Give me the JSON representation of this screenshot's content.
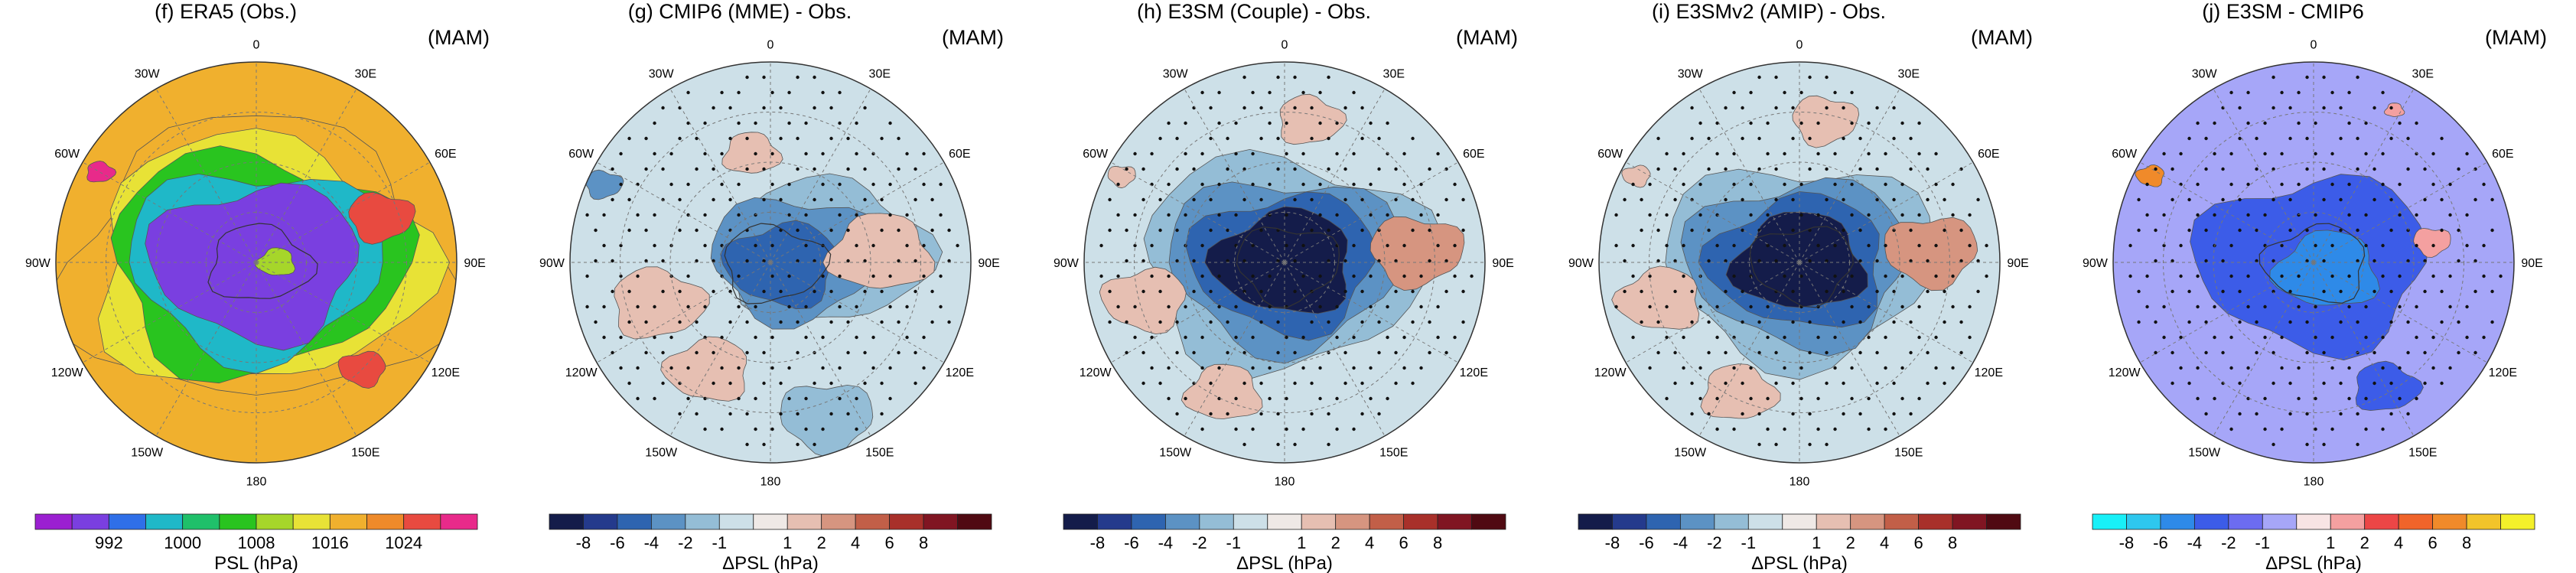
{
  "figure": {
    "season": "(MAM)"
  },
  "longitude_labels": [
    "0",
    "30E",
    "60E",
    "90E",
    "120E",
    "150E",
    "180",
    "150W",
    "120W",
    "90W",
    "60W",
    "30W"
  ],
  "chart_data": [
    {
      "id": "f",
      "type": "polar-contour",
      "title": "(f) ERA5 (Obs.)",
      "season": "(MAM)",
      "variable": "PSL",
      "units": "hPa",
      "colorbar_label": "PSL (hPa)",
      "levels": [
        988,
        992,
        996,
        1000,
        1004,
        1008,
        1012,
        1016,
        1020,
        1024,
        1028
      ],
      "tick_labels": [
        "992",
        "1000",
        "1008",
        "1016",
        "1024"
      ],
      "colors": [
        "#9b1fd1",
        "#7a3fe0",
        "#2f6fe8",
        "#1fb8c8",
        "#1fc06a",
        "#29c41f",
        "#a6d62a",
        "#e8e236",
        "#f0b02e",
        "#ee8a2a",
        "#e84a40",
        "#e82a8a"
      ],
      "stippling": false,
      "features": [
        {
          "kind": "ring",
          "r": 0.82,
          "value": 1016
        },
        {
          "kind": "ring",
          "r": 0.72,
          "value": 1012
        },
        {
          "kind": "ring",
          "r": 0.64,
          "value": 1004
        },
        {
          "kind": "ring",
          "r": 0.55,
          "value": 996
        },
        {
          "kind": "ring",
          "r": 0.45,
          "value": 988
        },
        {
          "kind": "blob",
          "lon": 90,
          "r": 0.1,
          "size": 0.08,
          "value": 1008
        },
        {
          "kind": "blob",
          "lon": 70,
          "r": 0.66,
          "size": 0.14,
          "value": 1024
        },
        {
          "kind": "blob",
          "lon": 135,
          "r": 0.75,
          "size": 0.1,
          "value": 1024
        },
        {
          "kind": "blob",
          "lon": -60,
          "r": 0.9,
          "size": 0.06,
          "value": 1028
        }
      ]
    },
    {
      "id": "g",
      "type": "polar-contour",
      "title": "(g) CMIP6 (MME) - Obs.",
      "season": "(MAM)",
      "variable": "ΔPSL",
      "units": "hPa",
      "colorbar_label": "ΔPSL (hPa)",
      "levels": [
        -8,
        -6,
        -4,
        -2,
        -1,
        1,
        2,
        4,
        6,
        8
      ],
      "tick_labels": [
        "-8",
        "-6",
        "-4",
        "-2",
        "-1",
        "1",
        "2",
        "4",
        "6",
        "8"
      ],
      "colors": [
        "#141c4a",
        "#243a8c",
        "#2e64b0",
        "#5c92c4",
        "#94bdd6",
        "#cde0e8",
        "#efe9e6",
        "#e6bfb2",
        "#d69580",
        "#c25f48",
        "#a8302a",
        "#801522",
        "#500a12"
      ],
      "stippling": true,
      "features": [
        {
          "kind": "blob",
          "lon": 100,
          "r": 0.06,
          "size": 0.24,
          "value": -6
        },
        {
          "kind": "blob",
          "lon": 80,
          "r": 0.12,
          "size": 0.36,
          "value": -3
        },
        {
          "kind": "blob",
          "lon": 80,
          "r": 0.3,
          "size": 0.42,
          "value": -1.5
        },
        {
          "kind": "blob",
          "lon": -10,
          "r": 0.55,
          "size": 0.12,
          "value": 2
        },
        {
          "kind": "blob",
          "lon": 85,
          "r": 0.55,
          "size": 0.22,
          "value": 2.5
        },
        {
          "kind": "blob",
          "lon": -110,
          "r": 0.6,
          "size": 0.2,
          "value": 2
        },
        {
          "kind": "blob",
          "lon": -150,
          "r": 0.62,
          "size": 0.18,
          "value": 2
        },
        {
          "kind": "blob",
          "lon": -65,
          "r": 0.92,
          "size": 0.08,
          "value": -3
        },
        {
          "kind": "blob",
          "lon": 160,
          "r": 0.82,
          "size": 0.2,
          "value": -1.5
        }
      ]
    },
    {
      "id": "h",
      "type": "polar-contour",
      "title": "(h) E3SM (Couple) - Obs.",
      "season": "(MAM)",
      "variable": "ΔPSL",
      "units": "hPa",
      "colorbar_label": "ΔPSL (hPa)",
      "levels": [
        -8,
        -6,
        -4,
        -2,
        -1,
        1,
        2,
        4,
        6,
        8
      ],
      "tick_labels": [
        "-8",
        "-6",
        "-4",
        "-2",
        "-1",
        "1",
        "2",
        "4",
        "6",
        "8"
      ],
      "colors": [
        "#141c4a",
        "#243a8c",
        "#2e64b0",
        "#5c92c4",
        "#94bdd6",
        "#cde0e8",
        "#efe9e6",
        "#e6bfb2",
        "#d69580",
        "#c25f48",
        "#a8302a",
        "#801522",
        "#500a12"
      ],
      "stippling": true,
      "features": [
        {
          "kind": "ring",
          "r": 0.62,
          "value": -2
        },
        {
          "kind": "ring",
          "r": 0.5,
          "value": -4
        },
        {
          "kind": "ring",
          "r": 0.4,
          "value": -6
        },
        {
          "kind": "ring",
          "r": 0.3,
          "value": -9
        },
        {
          "kind": "blob",
          "lon": 10,
          "r": 0.72,
          "size": 0.14,
          "value": 3
        },
        {
          "kind": "blob",
          "lon": 85,
          "r": 0.66,
          "size": 0.2,
          "value": 5
        },
        {
          "kind": "blob",
          "lon": -105,
          "r": 0.72,
          "size": 0.18,
          "value": 3
        },
        {
          "kind": "blob",
          "lon": -155,
          "r": 0.72,
          "size": 0.16,
          "value": 3
        },
        {
          "kind": "blob",
          "lon": -62,
          "r": 0.92,
          "size": 0.06,
          "value": 3
        }
      ]
    },
    {
      "id": "i",
      "type": "polar-contour",
      "title": "(i) E3SMv2 (AMIP) - Obs.",
      "season": "(MAM)",
      "variable": "ΔPSL",
      "units": "hPa",
      "colorbar_label": "ΔPSL (hPa)",
      "levels": [
        -8,
        -6,
        -4,
        -2,
        -1,
        1,
        2,
        4,
        6,
        8
      ],
      "tick_labels": [
        "-8",
        "-6",
        "-4",
        "-2",
        "-1",
        "1",
        "2",
        "4",
        "6",
        "8"
      ],
      "colors": [
        "#141c4a",
        "#243a8c",
        "#2e64b0",
        "#5c92c4",
        "#94bdd6",
        "#cde0e8",
        "#efe9e6",
        "#e6bfb2",
        "#d69580",
        "#c25f48",
        "#a8302a",
        "#801522",
        "#500a12"
      ],
      "stippling": true,
      "features": [
        {
          "kind": "ring",
          "r": 0.58,
          "value": -2
        },
        {
          "kind": "ring",
          "r": 0.48,
          "value": -4
        },
        {
          "kind": "ring",
          "r": 0.38,
          "value": -6
        },
        {
          "kind": "ring",
          "r": 0.28,
          "value": -9
        },
        {
          "kind": "blob",
          "lon": 10,
          "r": 0.72,
          "size": 0.14,
          "value": 3
        },
        {
          "kind": "blob",
          "lon": 85,
          "r": 0.66,
          "size": 0.2,
          "value": 5
        },
        {
          "kind": "blob",
          "lon": -105,
          "r": 0.72,
          "size": 0.18,
          "value": 3
        },
        {
          "kind": "blob",
          "lon": -155,
          "r": 0.72,
          "size": 0.16,
          "value": 3
        },
        {
          "kind": "blob",
          "lon": -62,
          "r": 0.92,
          "size": 0.06,
          "value": 3
        }
      ]
    },
    {
      "id": "j",
      "type": "polar-contour",
      "title": "(j) E3SM - CMIP6",
      "season": "(MAM)",
      "variable": "ΔPSL",
      "units": "hPa",
      "colorbar_label": "ΔPSL (hPa)",
      "levels": [
        -8,
        -6,
        -4,
        -2,
        -1,
        1,
        2,
        4,
        6,
        8
      ],
      "tick_labels": [
        "-8",
        "-6",
        "-4",
        "-2",
        "-1",
        "1",
        "2",
        "4",
        "6",
        "8"
      ],
      "colors": [
        "#18f0f8",
        "#2ec7ee",
        "#2e8ae8",
        "#3c5ce8",
        "#6c6cf0",
        "#a6a6f8",
        "#f8e4e4",
        "#f4a0a0",
        "#ec4646",
        "#f0642a",
        "#f08a2a",
        "#f2c42a",
        "#f4f02a"
      ],
      "stippling": true,
      "features": [
        {
          "kind": "blob",
          "lon": 0,
          "r": 0,
          "size": 0.5,
          "value": -3
        },
        {
          "kind": "blob",
          "lon": 120,
          "r": 0.08,
          "size": 0.22,
          "value": -5
        },
        {
          "kind": "blob",
          "lon": 150,
          "r": 0.72,
          "size": 0.14,
          "value": -3
        },
        {
          "kind": "blob",
          "lon": 80,
          "r": 0.6,
          "size": 0.08,
          "value": 2
        },
        {
          "kind": "blob",
          "lon": 28,
          "r": 0.86,
          "size": 0.04,
          "value": 2
        },
        {
          "kind": "blob",
          "lon": -62,
          "r": 0.92,
          "size": 0.06,
          "value": 9
        }
      ]
    }
  ]
}
